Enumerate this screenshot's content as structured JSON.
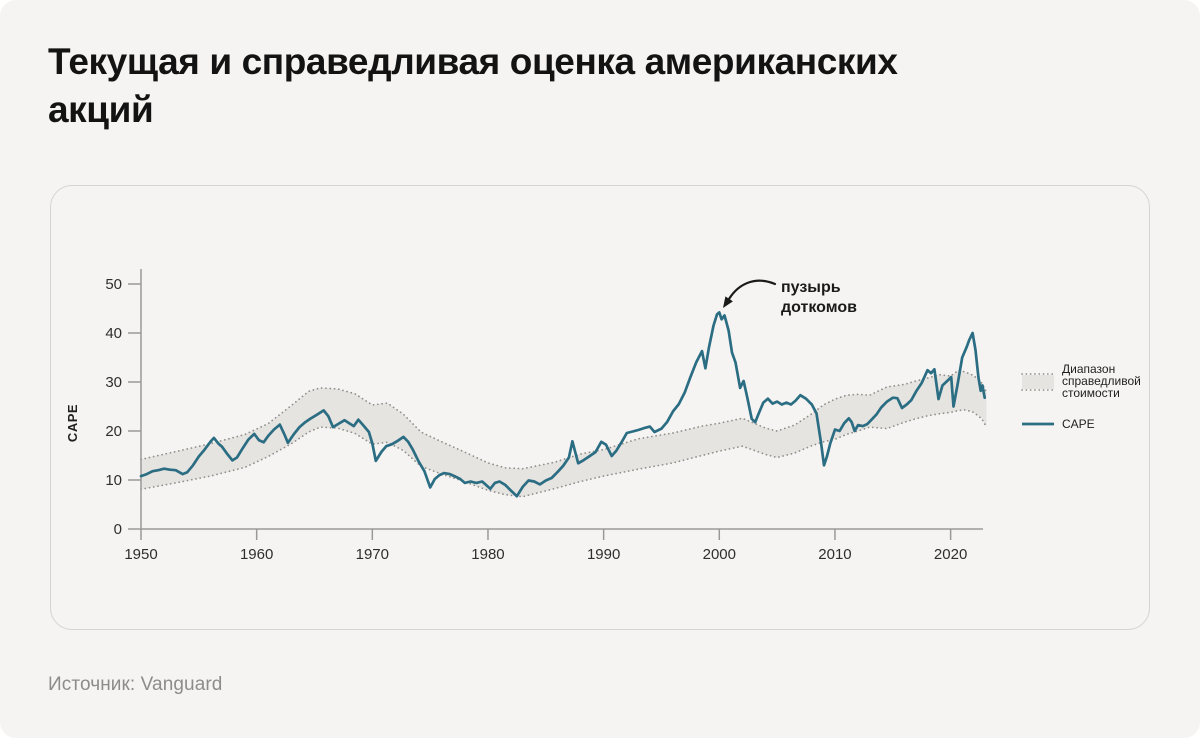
{
  "title": {
    "line1": "Текущая и справедливая оценка американских",
    "line2": "акций"
  },
  "source_label": "Источник: Vanguard",
  "chart_data": {
    "type": "line",
    "title": "",
    "xlabel": "",
    "ylabel": "CAPE",
    "x_ticks": [
      1950,
      1960,
      1970,
      1980,
      1990,
      2000,
      2010,
      2020
    ],
    "y_ticks": [
      0,
      10,
      20,
      30,
      40,
      50
    ],
    "xlim": [
      1950,
      2023.2
    ],
    "ylim": [
      0,
      50
    ],
    "grid": false,
    "legend_position": "right",
    "annotation": {
      "lines": [
        "пузырь",
        "доткомов"
      ],
      "arrow_points_to_year": 2000
    },
    "legend": [
      {
        "type": "band",
        "label": "Диапазон справедливой стоимости",
        "label_lines": [
          "Диапазон",
          "справедливой",
          "стоимости"
        ]
      },
      {
        "type": "line",
        "label": "CAPE"
      }
    ],
    "colors": {
      "cape": "#2b6d83",
      "band_fill": "#e6e4e1",
      "band_edge": "#8f8f8c",
      "axis": "#9a9997",
      "tick_text": "#2e2e2e",
      "annotation_text": "#1a1a1a",
      "legend_text": "#1f1f1f"
    },
    "series": [
      {
        "name": "CAPE",
        "type": "line",
        "points": [
          [
            1950,
            10.8
          ],
          [
            1950.5,
            11.2
          ],
          [
            1951,
            11.8
          ],
          [
            1951.5,
            12.0
          ],
          [
            1952,
            12.3
          ],
          [
            1952.5,
            12.1
          ],
          [
            1953,
            12.0
          ],
          [
            1953.6,
            11.2
          ],
          [
            1954,
            11.6
          ],
          [
            1954.5,
            13.0
          ],
          [
            1955,
            14.8
          ],
          [
            1955.5,
            16.2
          ],
          [
            1956,
            17.8
          ],
          [
            1956.3,
            18.6
          ],
          [
            1956.7,
            17.4
          ],
          [
            1957,
            16.8
          ],
          [
            1957.4,
            15.5
          ],
          [
            1957.9,
            14.0
          ],
          [
            1958.3,
            14.6
          ],
          [
            1958.8,
            16.5
          ],
          [
            1959.3,
            18.3
          ],
          [
            1959.8,
            19.4
          ],
          [
            1960.2,
            18.1
          ],
          [
            1960.6,
            17.7
          ],
          [
            1961,
            19.0
          ],
          [
            1961.5,
            20.3
          ],
          [
            1962,
            21.3
          ],
          [
            1962.4,
            19.3
          ],
          [
            1962.7,
            17.6
          ],
          [
            1963.2,
            19.3
          ],
          [
            1963.7,
            20.8
          ],
          [
            1964.2,
            21.8
          ],
          [
            1964.7,
            22.6
          ],
          [
            1965.2,
            23.3
          ],
          [
            1965.8,
            24.2
          ],
          [
            1966.2,
            23.0
          ],
          [
            1966.6,
            20.8
          ],
          [
            1967.1,
            21.5
          ],
          [
            1967.6,
            22.2
          ],
          [
            1968,
            21.6
          ],
          [
            1968.4,
            21.0
          ],
          [
            1968.8,
            22.3
          ],
          [
            1969.2,
            21.2
          ],
          [
            1969.7,
            19.8
          ],
          [
            1970.0,
            17.5
          ],
          [
            1970.3,
            13.9
          ],
          [
            1970.8,
            15.8
          ],
          [
            1971.2,
            16.9
          ],
          [
            1971.7,
            17.3
          ],
          [
            1972.2,
            18.0
          ],
          [
            1972.7,
            18.8
          ],
          [
            1973.1,
            17.8
          ],
          [
            1973.5,
            16.2
          ],
          [
            1974,
            13.8
          ],
          [
            1974.5,
            11.8
          ],
          [
            1975,
            8.5
          ],
          [
            1975.4,
            10.2
          ],
          [
            1975.8,
            11.0
          ],
          [
            1976.2,
            11.4
          ],
          [
            1976.7,
            11.2
          ],
          [
            1977.1,
            10.8
          ],
          [
            1977.6,
            10.2
          ],
          [
            1978,
            9.4
          ],
          [
            1978.5,
            9.7
          ],
          [
            1979,
            9.4
          ],
          [
            1979.5,
            9.7
          ],
          [
            1980.2,
            8.2
          ],
          [
            1980.6,
            9.4
          ],
          [
            1981,
            9.7
          ],
          [
            1981.5,
            9.0
          ],
          [
            1982,
            7.8
          ],
          [
            1982.5,
            6.7
          ],
          [
            1983,
            8.6
          ],
          [
            1983.5,
            9.9
          ],
          [
            1984,
            9.7
          ],
          [
            1984.5,
            9.1
          ],
          [
            1985,
            9.9
          ],
          [
            1985.5,
            10.4
          ],
          [
            1986,
            11.6
          ],
          [
            1986.5,
            12.9
          ],
          [
            1987,
            14.6
          ],
          [
            1987.3,
            17.9
          ],
          [
            1987.8,
            13.4
          ],
          [
            1988.3,
            14.1
          ],
          [
            1988.8,
            14.9
          ],
          [
            1989.3,
            15.7
          ],
          [
            1989.8,
            17.8
          ],
          [
            1990.2,
            17.2
          ],
          [
            1990.7,
            14.9
          ],
          [
            1991.1,
            16.0
          ],
          [
            1991.6,
            17.9
          ],
          [
            1992,
            19.6
          ],
          [
            1992.5,
            19.9
          ],
          [
            1993,
            20.2
          ],
          [
            1993.5,
            20.6
          ],
          [
            1994,
            20.9
          ],
          [
            1994.4,
            19.8
          ],
          [
            1995,
            20.5
          ],
          [
            1995.5,
            21.9
          ],
          [
            1996,
            24.0
          ],
          [
            1996.5,
            25.5
          ],
          [
            1997,
            27.8
          ],
          [
            1997.5,
            31.0
          ],
          [
            1998,
            34.0
          ],
          [
            1998.5,
            36.3
          ],
          [
            1998.8,
            32.8
          ],
          [
            1999.1,
            37.0
          ],
          [
            1999.5,
            41.5
          ],
          [
            1999.8,
            43.8
          ],
          [
            2000.0,
            44.2
          ],
          [
            2000.2,
            42.8
          ],
          [
            2000.45,
            43.6
          ],
          [
            2000.8,
            40.5
          ],
          [
            2001.1,
            36.0
          ],
          [
            2001.4,
            34.0
          ],
          [
            2001.8,
            28.8
          ],
          [
            2002.1,
            30.2
          ],
          [
            2002.4,
            27.0
          ],
          [
            2002.8,
            22.5
          ],
          [
            2003.1,
            21.8
          ],
          [
            2003.4,
            23.5
          ],
          [
            2003.8,
            25.8
          ],
          [
            2004.2,
            26.6
          ],
          [
            2004.6,
            25.6
          ],
          [
            2005,
            26.0
          ],
          [
            2005.4,
            25.4
          ],
          [
            2005.8,
            25.8
          ],
          [
            2006.2,
            25.4
          ],
          [
            2006.6,
            26.2
          ],
          [
            2007,
            27.3
          ],
          [
            2007.5,
            26.6
          ],
          [
            2008,
            25.4
          ],
          [
            2008.4,
            23.6
          ],
          [
            2008.8,
            17.5
          ],
          [
            2009.05,
            13.0
          ],
          [
            2009.3,
            14.8
          ],
          [
            2009.6,
            17.5
          ],
          [
            2010,
            20.3
          ],
          [
            2010.4,
            20.0
          ],
          [
            2010.8,
            21.6
          ],
          [
            2011.2,
            22.6
          ],
          [
            2011.45,
            21.8
          ],
          [
            2011.7,
            20.0
          ],
          [
            2012,
            21.2
          ],
          [
            2012.4,
            21.0
          ],
          [
            2012.8,
            21.4
          ],
          [
            2013.2,
            22.4
          ],
          [
            2013.6,
            23.4
          ],
          [
            2014,
            24.8
          ],
          [
            2014.5,
            26.0
          ],
          [
            2015,
            26.8
          ],
          [
            2015.4,
            26.7
          ],
          [
            2015.8,
            24.7
          ],
          [
            2016.2,
            25.4
          ],
          [
            2016.6,
            26.3
          ],
          [
            2017,
            28.0
          ],
          [
            2017.5,
            29.8
          ],
          [
            2018,
            32.4
          ],
          [
            2018.3,
            31.8
          ],
          [
            2018.6,
            32.6
          ],
          [
            2018.95,
            26.5
          ],
          [
            2019.3,
            29.3
          ],
          [
            2019.7,
            30.2
          ],
          [
            2020.05,
            31.0
          ],
          [
            2020.25,
            25.0
          ],
          [
            2020.6,
            29.5
          ],
          [
            2021,
            35.0
          ],
          [
            2021.4,
            37.2
          ],
          [
            2021.6,
            38.5
          ],
          [
            2021.9,
            40.0
          ],
          [
            2022.15,
            36.5
          ],
          [
            2022.4,
            31.0
          ],
          [
            2022.6,
            28.2
          ],
          [
            2022.75,
            29.3
          ],
          [
            2022.95,
            26.8
          ]
        ]
      },
      {
        "name": "Диапазон справедливой стоимости",
        "type": "band",
        "points": [
          [
            1950,
            8.1,
            14.2
          ],
          [
            1953,
            9.4,
            15.8
          ],
          [
            1956,
            10.8,
            17.4
          ],
          [
            1959,
            12.6,
            19.3
          ],
          [
            1961,
            14.8,
            21.5
          ],
          [
            1963,
            17.4,
            25.2
          ],
          [
            1964.5,
            19.8,
            28.1
          ],
          [
            1965.5,
            20.8,
            28.8
          ],
          [
            1967,
            20.6,
            28.6
          ],
          [
            1968.5,
            19.5,
            27.6
          ],
          [
            1970,
            17.3,
            25.3
          ],
          [
            1971.3,
            17.7,
            25.7
          ],
          [
            1972.7,
            16.0,
            23.4
          ],
          [
            1974.2,
            12.8,
            19.8
          ],
          [
            1976,
            11.2,
            17.8
          ],
          [
            1977.8,
            9.8,
            15.9
          ],
          [
            1980,
            7.9,
            13.5
          ],
          [
            1981.5,
            7.0,
            12.5
          ],
          [
            1983,
            6.6,
            12.3
          ],
          [
            1985.7,
            8.2,
            13.6
          ],
          [
            1988,
            9.7,
            15.3
          ],
          [
            1990,
            10.8,
            16.2
          ],
          [
            1993,
            12.2,
            18.4
          ],
          [
            1996,
            13.5,
            19.6
          ],
          [
            1998.5,
            15.0,
            21.0
          ],
          [
            2000,
            15.9,
            21.6
          ],
          [
            2002,
            16.9,
            22.6
          ],
          [
            2004,
            15.2,
            20.6
          ],
          [
            2005,
            14.6,
            20.0
          ],
          [
            2006.5,
            15.5,
            21.2
          ],
          [
            2008,
            17.0,
            23.5
          ],
          [
            2009,
            17.8,
            25.3
          ],
          [
            2010,
            18.3,
            26.5
          ],
          [
            2011,
            19.3,
            27.3
          ],
          [
            2012,
            20.0,
            27.5
          ],
          [
            2013,
            20.8,
            27.3
          ],
          [
            2014.5,
            20.5,
            29.0
          ],
          [
            2016,
            21.8,
            29.5
          ],
          [
            2017,
            22.5,
            30.2
          ],
          [
            2018,
            23.1,
            30.8
          ],
          [
            2019,
            23.5,
            31.5
          ],
          [
            2020,
            23.8,
            31.2
          ],
          [
            2020.7,
            24.2,
            32.4
          ],
          [
            2021.3,
            24.3,
            32.0
          ],
          [
            2022,
            23.8,
            31.3
          ],
          [
            2022.7,
            22.5,
            29.8
          ],
          [
            2023.1,
            20.8,
            27.9
          ]
        ]
      }
    ]
  }
}
